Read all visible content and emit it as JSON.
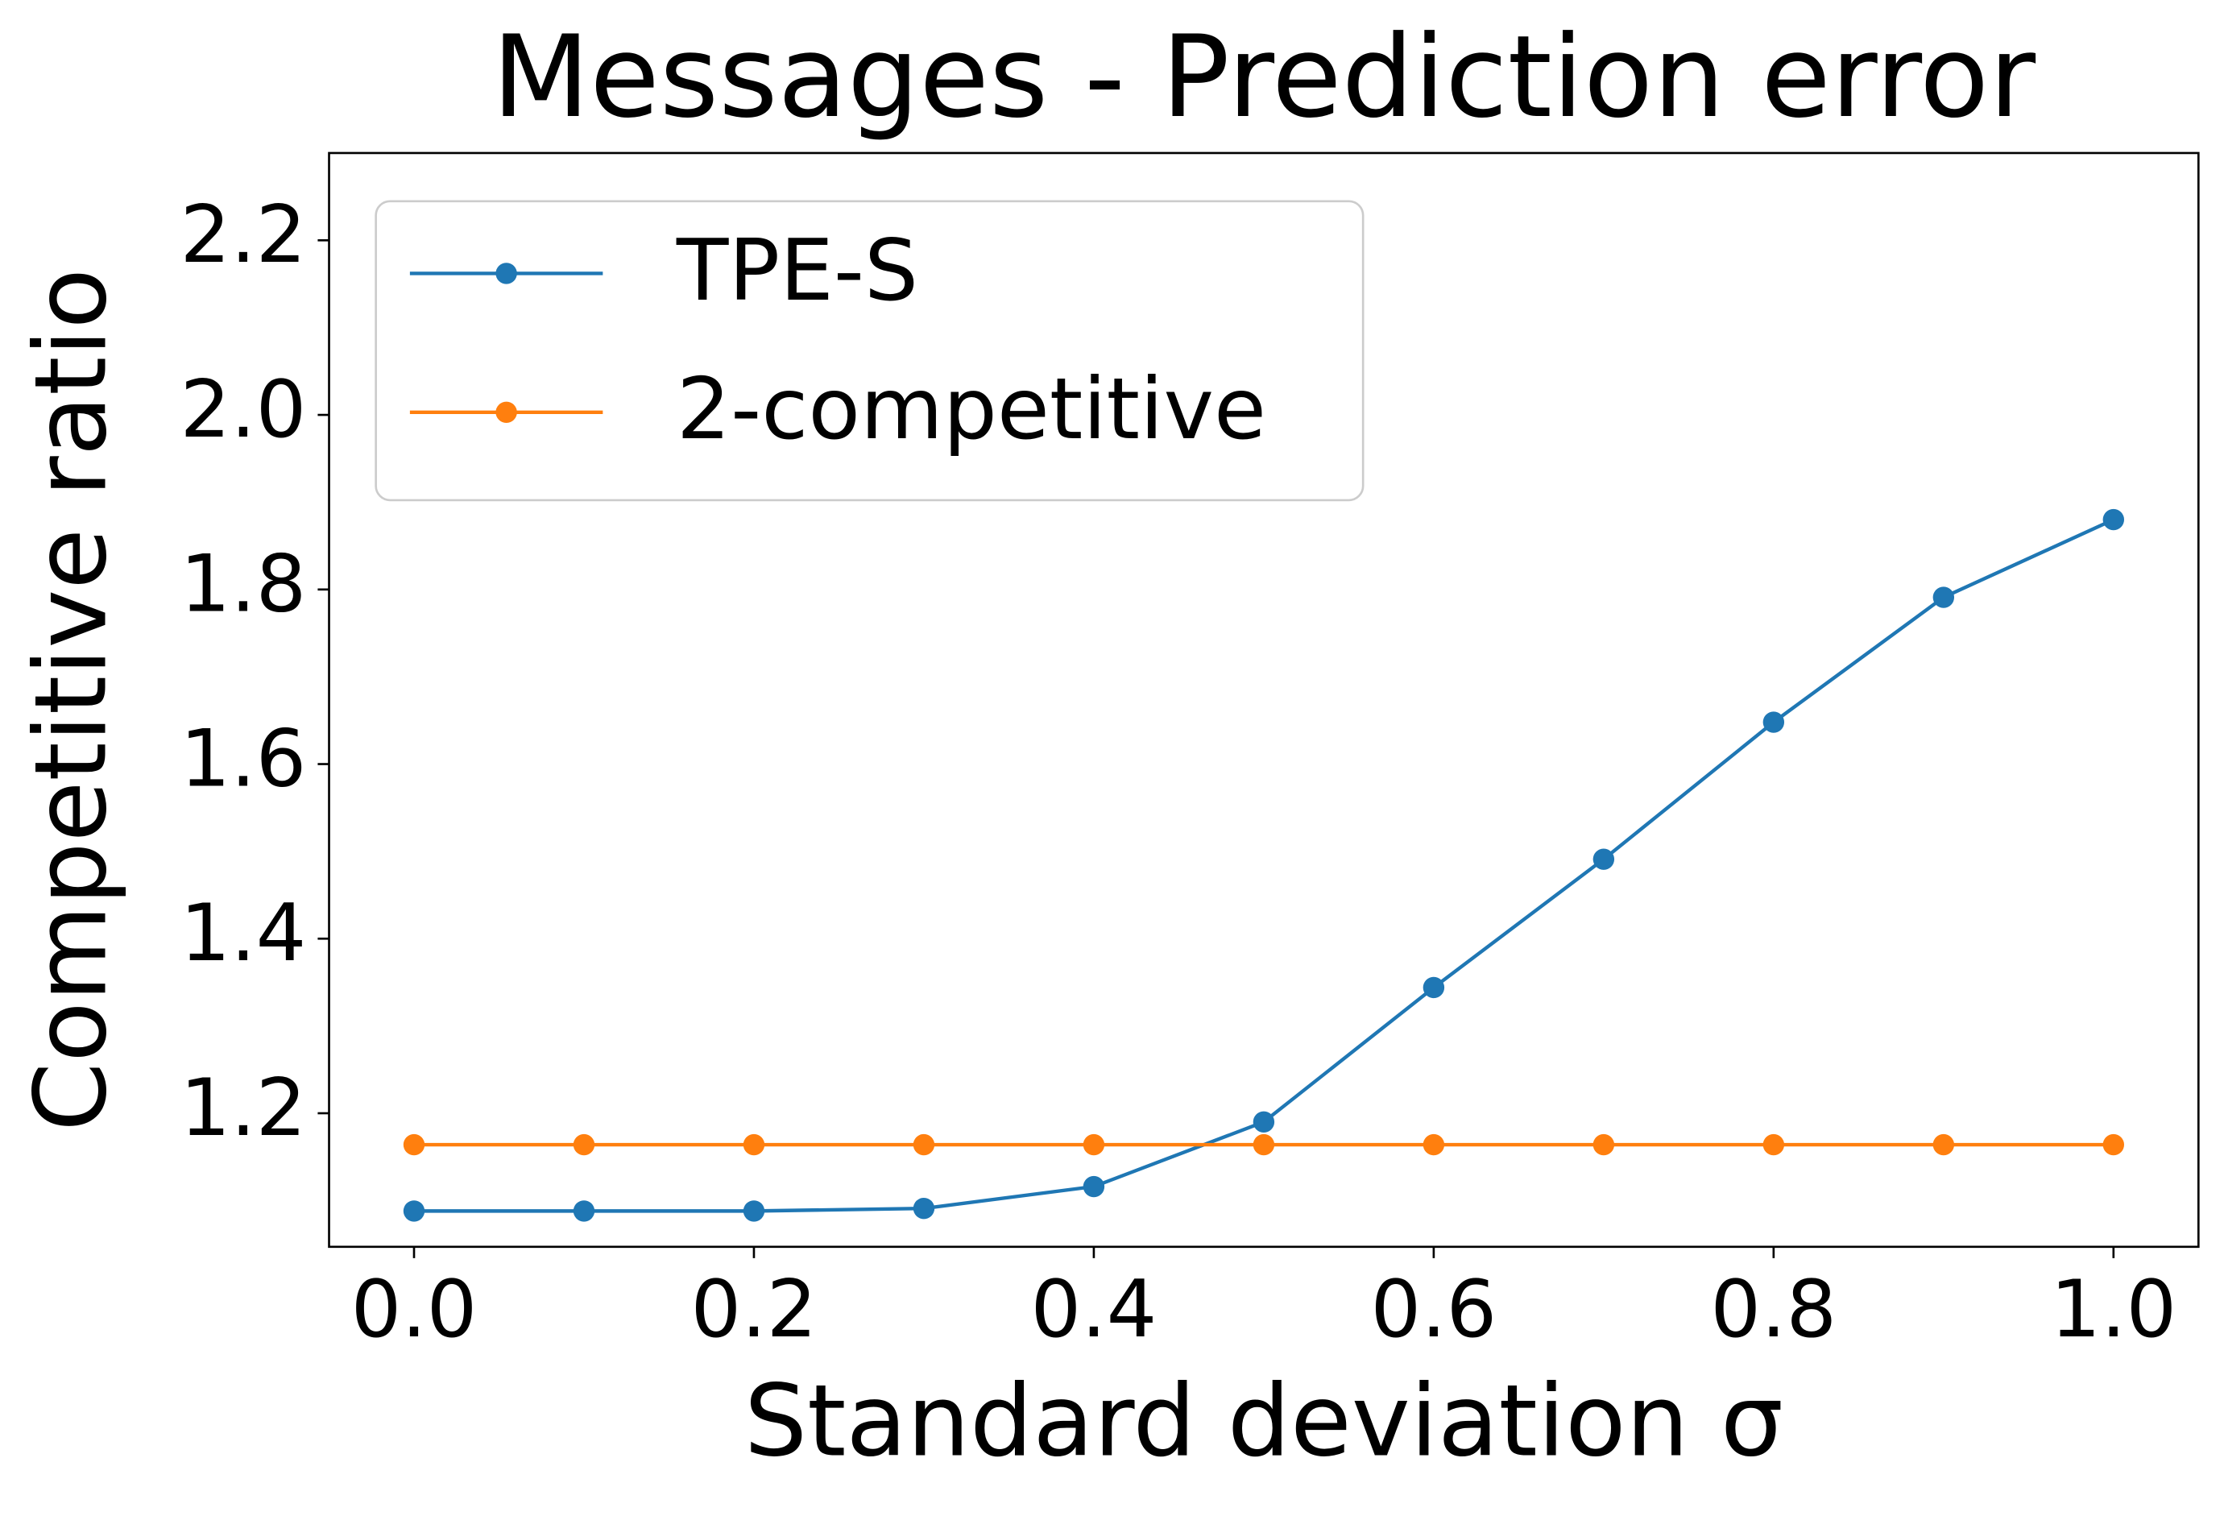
{
  "chart_data": {
    "type": "line",
    "title": "Messages - Prediction error",
    "x_label": "Standard deviation σ",
    "y_label": "Competitive ratio",
    "x": [
      0,
      0.1,
      0.2,
      0.3,
      0.4,
      0.5,
      0.6,
      0.7,
      0.8,
      0.9,
      1.0
    ],
    "series": [
      {
        "name": "TPE-S",
        "color": "#1f77b4",
        "values": [
          1.088,
          1.088,
          1.088,
          1.091,
          1.116,
          1.19,
          1.344,
          1.491,
          1.648,
          1.791,
          1.88
        ]
      },
      {
        "name": "2-competitive",
        "color": "#ff7f0e",
        "values": [
          1.164,
          1.164,
          1.164,
          1.164,
          1.164,
          1.164,
          1.164,
          1.164,
          1.164,
          1.164,
          1.164
        ]
      }
    ],
    "xlim": [
      -0.05,
      1.05
    ],
    "ylim": [
      1.047,
      2.3
    ],
    "xticks": [
      {
        "value": 0,
        "label": "0.0"
      },
      0.2,
      0.4,
      0.6,
      0.8,
      {
        "value": 1,
        "label": "1.0"
      }
    ],
    "yticks": [
      1.2,
      1.4,
      1.6,
      1.8,
      {
        "value": 2,
        "label": "2.0"
      },
      2.2
    ],
    "grid": false,
    "legend": "upper left"
  }
}
